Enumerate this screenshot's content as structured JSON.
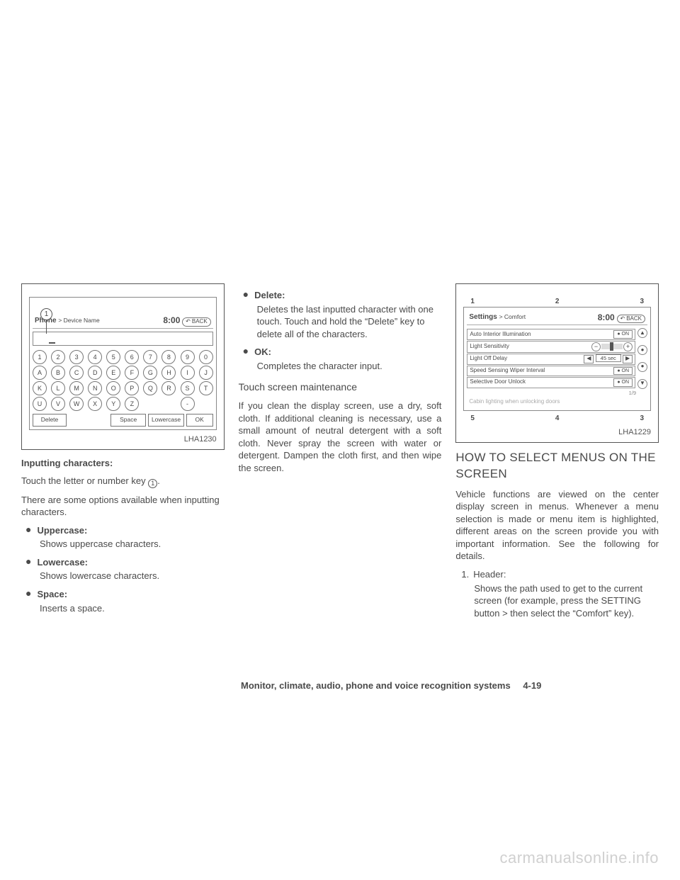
{
  "fig1": {
    "caption": "LHA1230",
    "header_left_bold": "Phone",
    "header_left_tail": "> Device Name",
    "clock": "8:00",
    "back": "BACK",
    "callout": "1",
    "row_nums": [
      "1",
      "2",
      "3",
      "4",
      "5",
      "6",
      "7",
      "8",
      "9",
      "0"
    ],
    "row_abc": [
      "A",
      "B",
      "C",
      "D",
      "E",
      "F",
      "G",
      "H",
      "I",
      "J"
    ],
    "row_klm": [
      "K",
      "L",
      "M",
      "N",
      "O",
      "P",
      "Q",
      "R",
      "S",
      "T"
    ],
    "row_uvw": [
      "U",
      "V",
      "W",
      "X",
      "Y",
      "Z"
    ],
    "dash_key": "-",
    "btn_delete": "Delete",
    "btn_space": "Space",
    "btn_lowercase": "Lowercase",
    "btn_ok": "OK"
  },
  "col1": {
    "h_input": "Inputting characters:",
    "p_touch_a": "Touch the letter or number key ",
    "p_touch_num": "1",
    "p_touch_b": ".",
    "p_options": "There are some options available when inputting characters.",
    "b_upper": "Uppercase:",
    "d_upper": "Shows uppercase characters.",
    "b_lower": "Lowercase:",
    "d_lower": "Shows lowercase characters.",
    "b_space": "Space:",
    "d_space": "Inserts a space."
  },
  "col2": {
    "b_delete": "Delete:",
    "d_delete": "Deletes the last inputted character with one touch. Touch and hold the “Delete” key to delete all of the characters.",
    "b_ok": "OK:",
    "d_ok": "Completes the character input.",
    "h_maint": "Touch screen maintenance",
    "p_maint": "If you clean the display screen, use a dry, soft cloth. If additional cleaning is necessary, use a small amount of neutral detergent with a soft cloth. Never spray the screen with water or detergent. Dampen the cloth first, and then wipe the screen."
  },
  "fig2": {
    "caption": "LHA1229",
    "top_annot": [
      "1",
      "2",
      "3"
    ],
    "bot_annot": [
      "5",
      "4",
      "3"
    ],
    "header_left_bold": "Settings",
    "header_left_tail": "> Comfort",
    "clock": "8:00",
    "back": "BACK",
    "rows": [
      {
        "label": "Auto Interior Illumination",
        "ctrl": "on"
      },
      {
        "label": "Light Sensitivity",
        "ctrl": "slider"
      },
      {
        "label": "Light Off Delay",
        "ctrl": "delay",
        "value": "45 sec"
      },
      {
        "label": "Speed Sensing Wiper Interval",
        "ctrl": "on"
      },
      {
        "label": "Selective Door Unlock",
        "ctrl": "on"
      }
    ],
    "ghost_row": "Cabin lighting when unlocking doors",
    "page_indicator": "1/9",
    "on_label": "ON"
  },
  "col3": {
    "h_menus": "HOW TO SELECT MENUS ON THE SCREEN",
    "p_intro": "Vehicle functions are viewed on the center display screen in menus. Whenever a menu selection is made or menu item is highlighted, different areas on the screen provide you with important information. See the following for details.",
    "n1_label": "1.",
    "n1_title": "Header:",
    "n1_desc": "Shows the path used to get to the current screen (for example, press the SETTING button > then select the “Comfort” key)."
  },
  "footer": {
    "section": "Monitor, climate, audio, phone and voice recognition systems",
    "page": "4-19"
  },
  "watermark": "carmanualsonline.info"
}
